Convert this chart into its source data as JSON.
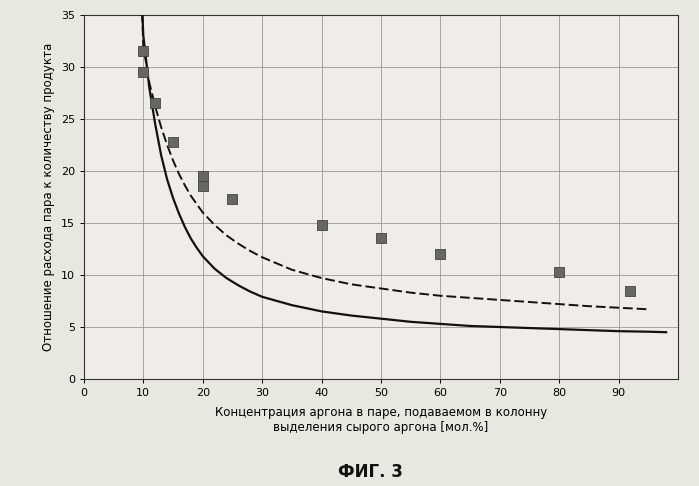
{
  "title": "ФИГ. 3",
  "xlabel_line1": "Концентрация аргона в паре, подаваемом в колонну",
  "xlabel_line2": "выделения сырого аргона [мол.%]",
  "ylabel": "Отношение расхода пара к количеству продукта",
  "xlim": [
    0,
    100
  ],
  "ylim": [
    0,
    35
  ],
  "xticks": [
    0,
    10,
    20,
    30,
    40,
    50,
    60,
    70,
    80,
    90
  ],
  "yticks": [
    0,
    5,
    10,
    15,
    20,
    25,
    30,
    35
  ],
  "solid_curve_x": [
    9.5,
    10,
    11,
    12,
    13,
    14,
    15,
    16,
    17,
    18,
    19,
    20,
    22,
    24,
    26,
    28,
    30,
    35,
    40,
    45,
    50,
    55,
    60,
    65,
    70,
    75,
    80,
    85,
    90,
    95,
    98
  ],
  "solid_curve_y": [
    40,
    33,
    28,
    24.5,
    21.5,
    19.2,
    17.4,
    15.9,
    14.6,
    13.5,
    12.6,
    11.8,
    10.6,
    9.7,
    9.0,
    8.4,
    7.9,
    7.1,
    6.5,
    6.1,
    5.8,
    5.5,
    5.3,
    5.1,
    5.0,
    4.9,
    4.8,
    4.7,
    4.6,
    4.55,
    4.5
  ],
  "dashed_curve_x": [
    9.5,
    10,
    11,
    12,
    13,
    14,
    15,
    16,
    17,
    18,
    19,
    20,
    22,
    24,
    26,
    28,
    30,
    35,
    40,
    45,
    50,
    55,
    60,
    65,
    70,
    75,
    80,
    85,
    90,
    95
  ],
  "dashed_curve_y": [
    40,
    32,
    28.5,
    26.2,
    24.2,
    22.5,
    21.0,
    19.7,
    18.6,
    17.6,
    16.8,
    16.0,
    14.8,
    13.8,
    13.0,
    12.3,
    11.7,
    10.5,
    9.7,
    9.1,
    8.7,
    8.3,
    8.0,
    7.8,
    7.6,
    7.4,
    7.2,
    7.0,
    6.85,
    6.7
  ],
  "marker_x": [
    10,
    10,
    12,
    15,
    20,
    20,
    25,
    40,
    50,
    60,
    80,
    92
  ],
  "marker_y": [
    31.5,
    29.5,
    26.5,
    22.8,
    19.5,
    18.5,
    17.3,
    14.8,
    13.5,
    12.0,
    10.3,
    8.5
  ],
  "solid_color": "#111111",
  "dashed_color": "#111111",
  "marker_color": "#666666",
  "background_color": "#e8e8e0",
  "plot_bg_color": "#f0ede8",
  "grid_color": "#999999"
}
